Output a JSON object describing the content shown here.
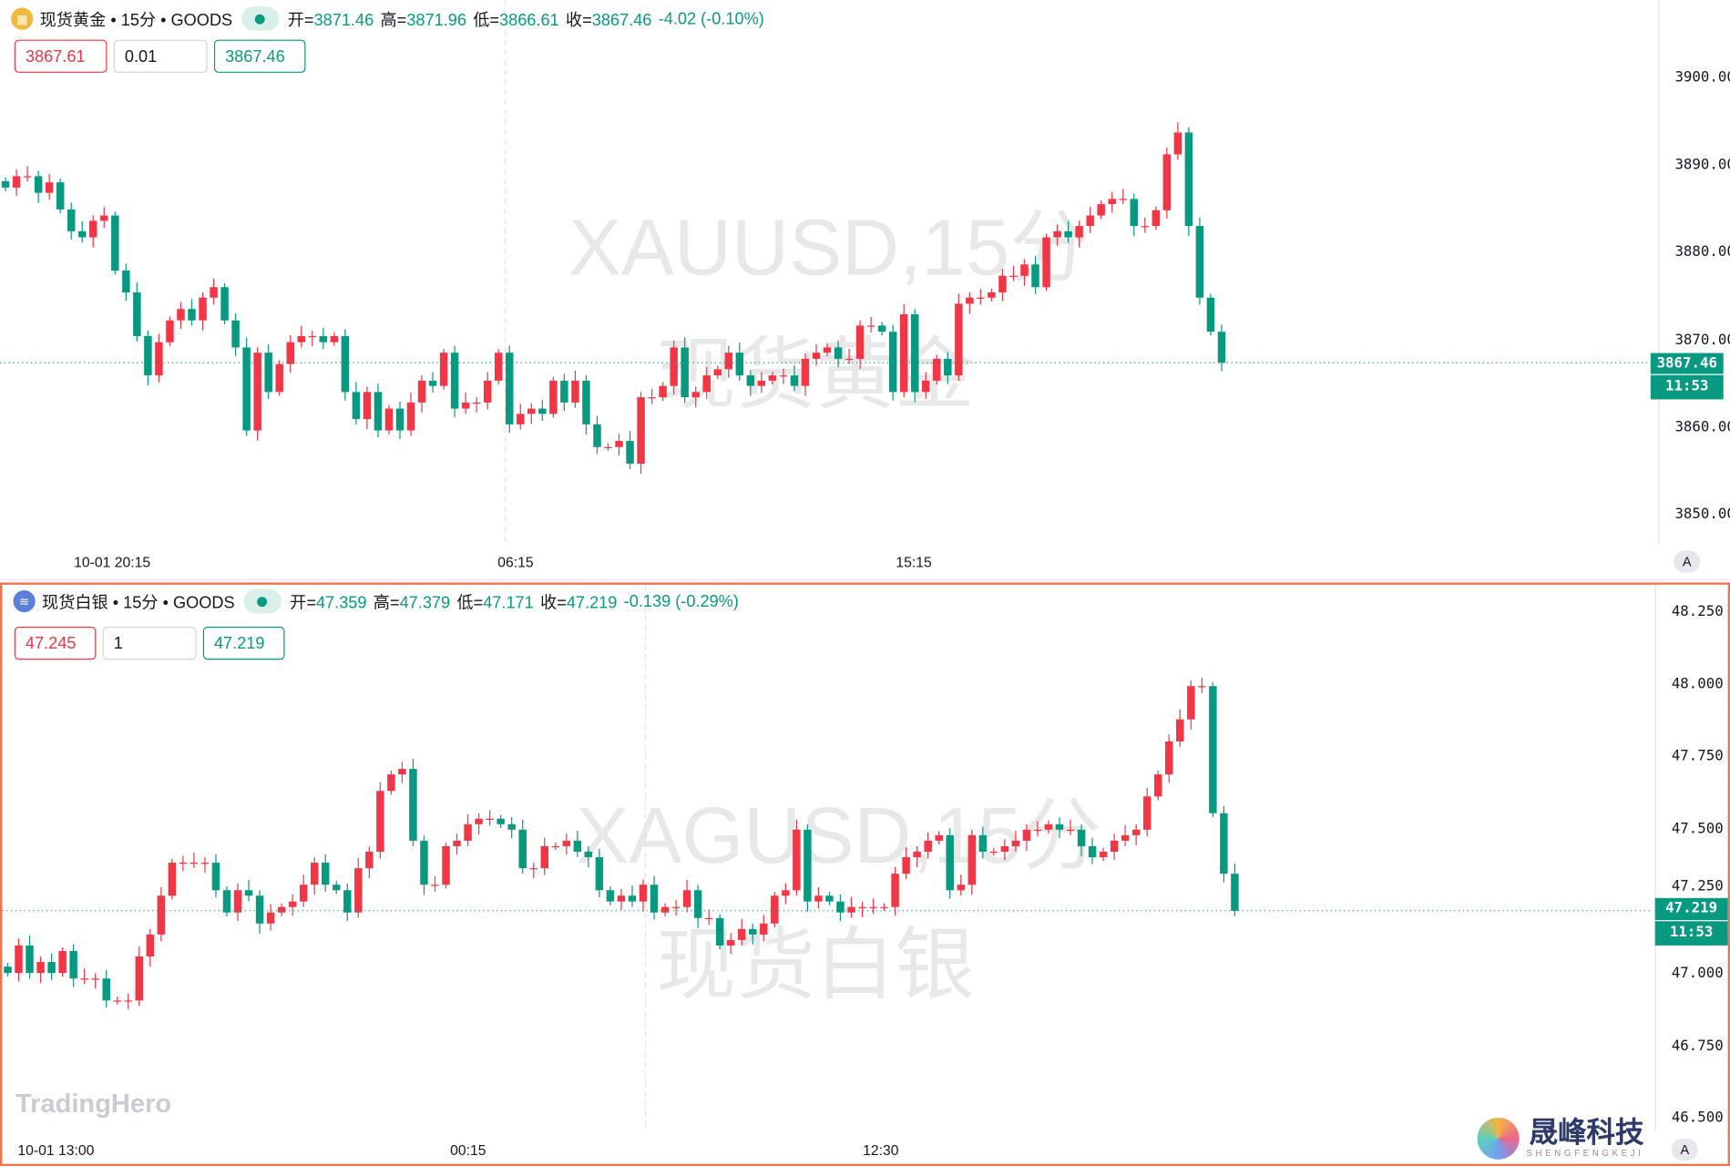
{
  "colors": {
    "up": "#f23645",
    "down": "#089981",
    "accent": "#f0734a",
    "gold": "#f0b93a",
    "silver": "#5b7fdb"
  },
  "top": {
    "symbol": "现货黄金 • 15分 • GOODS",
    "icon": "gold-bars-icon",
    "open_label": "开=",
    "open": "3871.46",
    "high_label": "高=",
    "high": "3871.96",
    "low_label": "低=",
    "low": "3866.61",
    "close_label": "收=",
    "close": "3867.46",
    "change": "-4.02 (-0.10%)",
    "sell": "3867.61",
    "qty": "0.01",
    "buy": "3867.46",
    "watermark1": "XAUUSD,15分",
    "watermark2": "现货黄金",
    "price_tag": "3867.46",
    "countdown": "11:53",
    "time_labels": [
      "10-01 20:15",
      "06:15",
      "15:15"
    ],
    "axis_button": "A"
  },
  "bottom": {
    "symbol": "现货白银 • 15分 • GOODS",
    "icon": "silver-icon",
    "open_label": "开=",
    "open": "47.359",
    "high_label": "高=",
    "high": "47.379",
    "low_label": "低=",
    "low": "47.171",
    "close_label": "收=",
    "close": "47.219",
    "change": "-0.139 (-0.29%)",
    "sell": "47.245",
    "qty": "1",
    "buy": "47.219",
    "watermark1": "XAGUSD,15分",
    "watermark2": "现货白银",
    "price_tag": "47.219",
    "countdown": "11:53",
    "time_labels": [
      "10-01 13:00",
      "00:15",
      "12:30"
    ],
    "axis_button": "A"
  },
  "logo": "TradingHero",
  "brand": {
    "name": "晟峰科技",
    "sub": "SHENGFENGKEJI"
  },
  "chart_data": [
    {
      "type": "candlestick",
      "symbol": "XAUUSD",
      "interval": "15分",
      "ylim": [
        3845,
        3905
      ],
      "yticks": [
        "3900.00",
        "3890.00",
        "3880.00",
        "3870.00",
        "3860.00",
        "3850.00"
      ],
      "last": 3867.46,
      "close": [
        3887.5,
        3888.8,
        3888.8,
        3886.9,
        3888.1,
        3885.0,
        3882.5,
        3881.8,
        3883.7,
        3884.3,
        3878.0,
        3875.5,
        3870.5,
        3866.0,
        3869.8,
        3872.3,
        3873.6,
        3872.3,
        3874.9,
        3876.1,
        3872.3,
        3869.2,
        3859.7,
        3868.6,
        3864.1,
        3867.3,
        3869.8,
        3870.5,
        3870.5,
        3869.8,
        3870.5,
        3864.1,
        3861.0,
        3864.1,
        3859.7,
        3862.2,
        3859.7,
        3862.9,
        3865.4,
        3864.8,
        3868.6,
        3862.2,
        3862.9,
        3862.9,
        3865.4,
        3868.6,
        3860.4,
        3861.6,
        3862.2,
        3861.6,
        3865.4,
        3862.9,
        3865.4,
        3860.4,
        3857.8,
        3857.8,
        3858.5,
        3855.9,
        3863.5,
        3863.5,
        3864.8,
        3869.2,
        3863.5,
        3864.1,
        3866.0,
        3866.7,
        3868.6,
        3866.0,
        3864.8,
        3865.4,
        3866.0,
        3866.0,
        3864.8,
        3867.9,
        3868.6,
        3869.2,
        3867.9,
        3867.9,
        3871.7,
        3871.7,
        3871.0,
        3864.1,
        3873.0,
        3864.1,
        3865.4,
        3867.9,
        3866.0,
        3874.2,
        3874.9,
        3874.9,
        3875.5,
        3877.4,
        3877.4,
        3878.7,
        3876.1,
        3881.8,
        3882.5,
        3881.8,
        3883.1,
        3884.3,
        3885.6,
        3886.2,
        3886.2,
        3883.1,
        3883.1,
        3884.9,
        3891.3,
        3893.8,
        3883.1,
        3874.9,
        3871.0,
        3867.46
      ]
    },
    {
      "type": "candlestick",
      "symbol": "XAGUSD",
      "interval": "15分",
      "ylim": [
        46.48,
        48.3
      ],
      "yticks": [
        "48.250",
        "48.000",
        "47.750",
        "47.500",
        "47.250",
        "47.000",
        "46.750",
        "46.500"
      ],
      "last": 47.219,
      "close": [
        47.004,
        47.099,
        47.004,
        47.042,
        47.004,
        47.08,
        46.985,
        46.985,
        46.985,
        46.909,
        46.909,
        46.909,
        47.061,
        47.137,
        47.271,
        47.385,
        47.385,
        47.385,
        47.385,
        47.29,
        47.213,
        47.29,
        47.271,
        47.175,
        47.213,
        47.232,
        47.251,
        47.309,
        47.385,
        47.309,
        47.29,
        47.213,
        47.366,
        47.423,
        47.633,
        47.69,
        47.709,
        47.461,
        47.309,
        47.309,
        47.442,
        47.461,
        47.518,
        47.537,
        47.537,
        47.518,
        47.499,
        47.366,
        47.366,
        47.442,
        47.442,
        47.461,
        47.423,
        47.404,
        47.29,
        47.251,
        47.271,
        47.251,
        47.309,
        47.213,
        47.232,
        47.232,
        47.29,
        47.194,
        47.194,
        47.099,
        47.118,
        47.156,
        47.137,
        47.175,
        47.271,
        47.29,
        47.499,
        47.251,
        47.271,
        47.251,
        47.213,
        47.232,
        47.232,
        47.232,
        47.232,
        47.347,
        47.404,
        47.423,
        47.461,
        47.48,
        47.29,
        47.309,
        47.48,
        47.423,
        47.423,
        47.442,
        47.461,
        47.499,
        47.499,
        47.518,
        47.499,
        47.499,
        47.442,
        47.404,
        47.423,
        47.461,
        47.48,
        47.499,
        47.614,
        47.69,
        47.804,
        47.88,
        47.995,
        47.995,
        47.556,
        47.347,
        47.219
      ]
    }
  ]
}
